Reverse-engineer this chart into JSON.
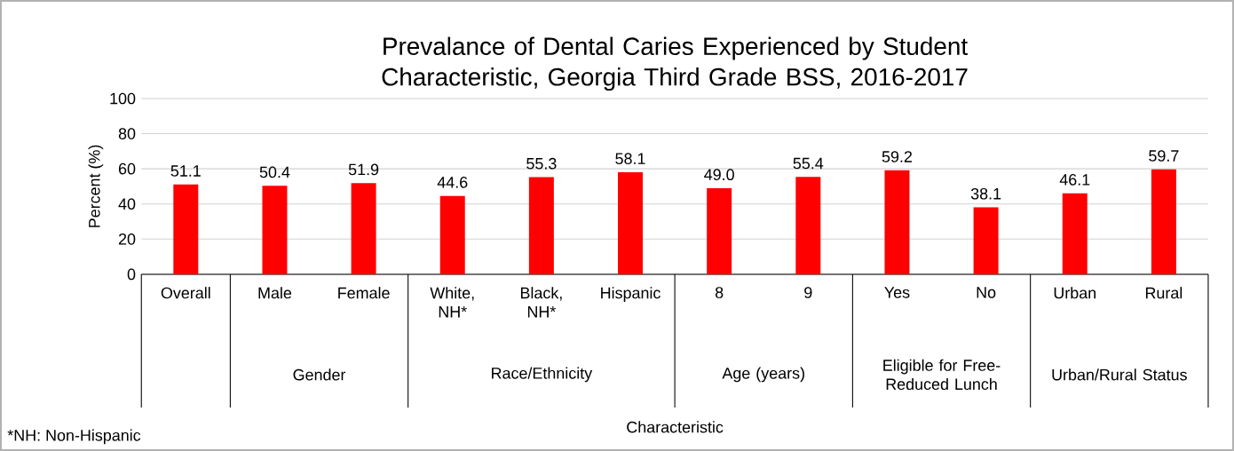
{
  "chart_data": {
    "type": "bar",
    "title": "Prevalance of Dental Caries Experienced by Student Characteristic, Georgia Third Grade BSS, 2016-2017",
    "ylabel": "Percent (%)",
    "categories": [
      "Overall",
      "Male",
      "Female",
      "White, NH*",
      "Black, NH*",
      "Hispanic",
      "8",
      "9",
      "Yes",
      "No",
      "Urban",
      "Rural"
    ],
    "values": [
      51.1,
      50.4,
      51.9,
      44.6,
      55.3,
      58.1,
      49.0,
      55.4,
      59.2,
      38.1,
      46.1,
      59.7
    ],
    "color": "#ff0000",
    "ylim": [
      0,
      100
    ],
    "yticks": [
      0,
      20,
      40,
      60,
      80,
      100
    ],
    "grid": "y",
    "value_labels": [
      "51.1",
      "50.4",
      "51.9",
      "44.6",
      "55.3",
      "58.1",
      "49.0",
      "55.4",
      "59.2",
      "38.1",
      "46.1",
      "59.7"
    ],
    "annotations": [
      "Gender",
      "Race/Ethnicity",
      "Age (years)",
      "Eligible for Free-Reduced Lunch",
      "Urban/Rural Status",
      "*NH: Non-Hispanic",
      "Characteristic"
    ]
  }
}
